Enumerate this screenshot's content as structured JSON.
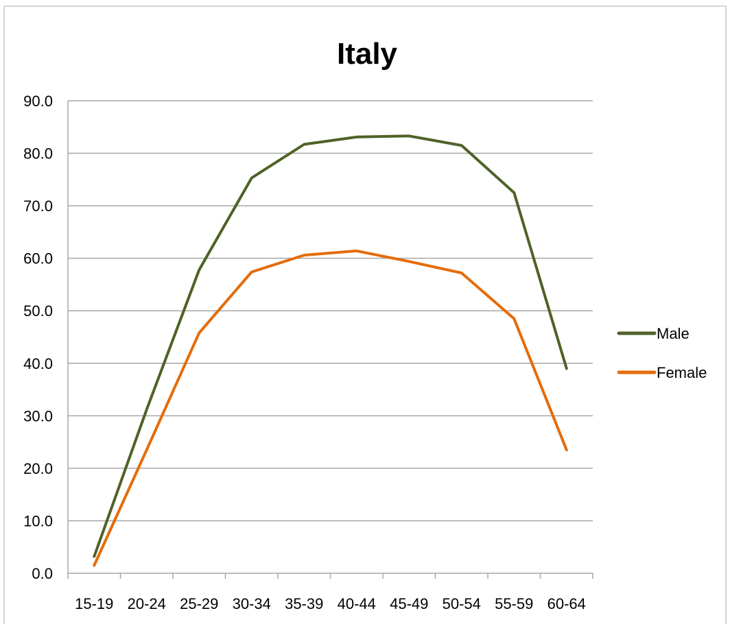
{
  "chart_data": {
    "type": "line",
    "title": "Italy",
    "categories": [
      "15-19",
      "20-24",
      "25-29",
      "30-34",
      "35-39",
      "40-44",
      "45-49",
      "50-54",
      "55-59",
      "60-64"
    ],
    "y_tick_labels": [
      "0.0",
      "10.0",
      "20.0",
      "30.0",
      "40.0",
      "50.0",
      "60.0",
      "70.0",
      "80.0",
      "90.0"
    ],
    "ylim": [
      0,
      90
    ],
    "y_step": 10,
    "grid": true,
    "legend_position": "right",
    "series": [
      {
        "name": "Male",
        "color": "#4f6228",
        "values": [
          3.2,
          31.2,
          57.8,
          75.3,
          81.7,
          83.1,
          83.3,
          81.5,
          72.5,
          39.0
        ]
      },
      {
        "name": "Female",
        "color": "#e46c0a",
        "values": [
          1.5,
          23.5,
          45.8,
          57.4,
          60.6,
          61.4,
          59.4,
          57.2,
          48.5,
          23.5
        ]
      }
    ]
  }
}
